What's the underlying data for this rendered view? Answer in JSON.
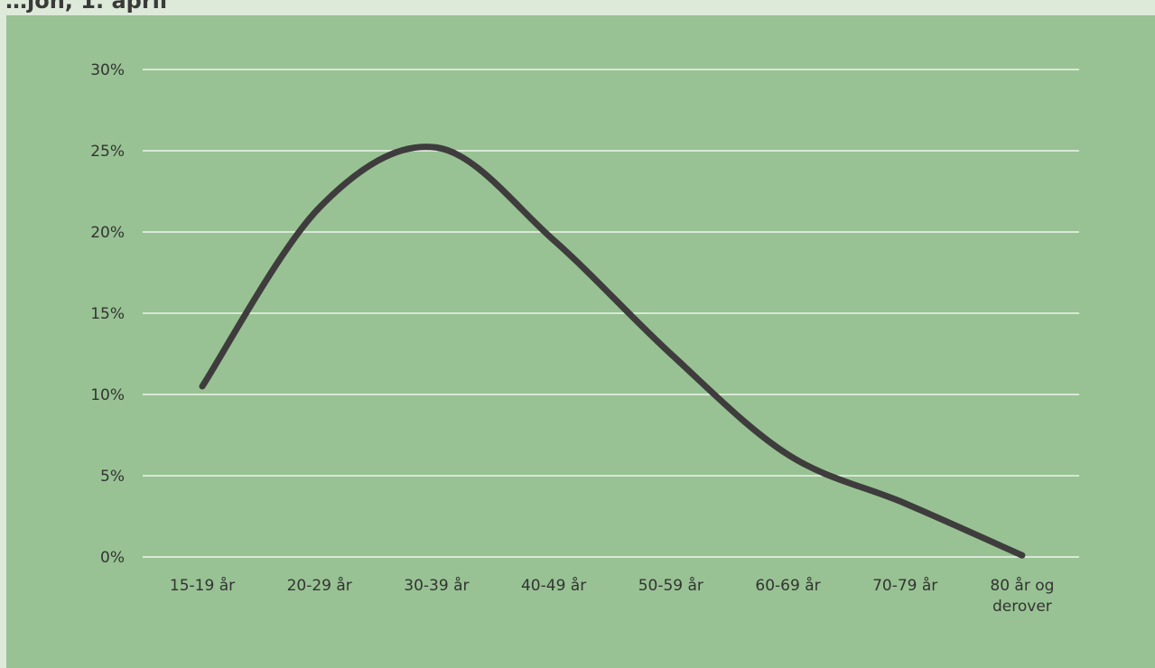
{
  "header": {
    "title_fragment": "…jon, 1. april"
  },
  "chart_data": {
    "type": "line",
    "title": "",
    "xlabel": "",
    "ylabel": "",
    "categories": [
      "15-19 år",
      "20-29 år",
      "30-39 år",
      "40-49 år",
      "50-59 år",
      "60-69 år",
      "70-79 år",
      "80 år og derover"
    ],
    "series": [
      {
        "values": [
          10.5,
          21.5,
          25.2,
          19.5,
          12.5,
          6.3,
          3.3,
          0.1
        ]
      }
    ],
    "y_ticks": [
      "0%",
      "5%",
      "10%",
      "15%",
      "20%",
      "25%",
      "30%"
    ],
    "ylim": [
      0,
      30
    ],
    "smooth": true,
    "grid": "horizontal",
    "legend": "none",
    "colors": {
      "background": "#98c293",
      "line": "#3f3c3d",
      "grid": "#ffffff",
      "text": "#333333"
    }
  }
}
